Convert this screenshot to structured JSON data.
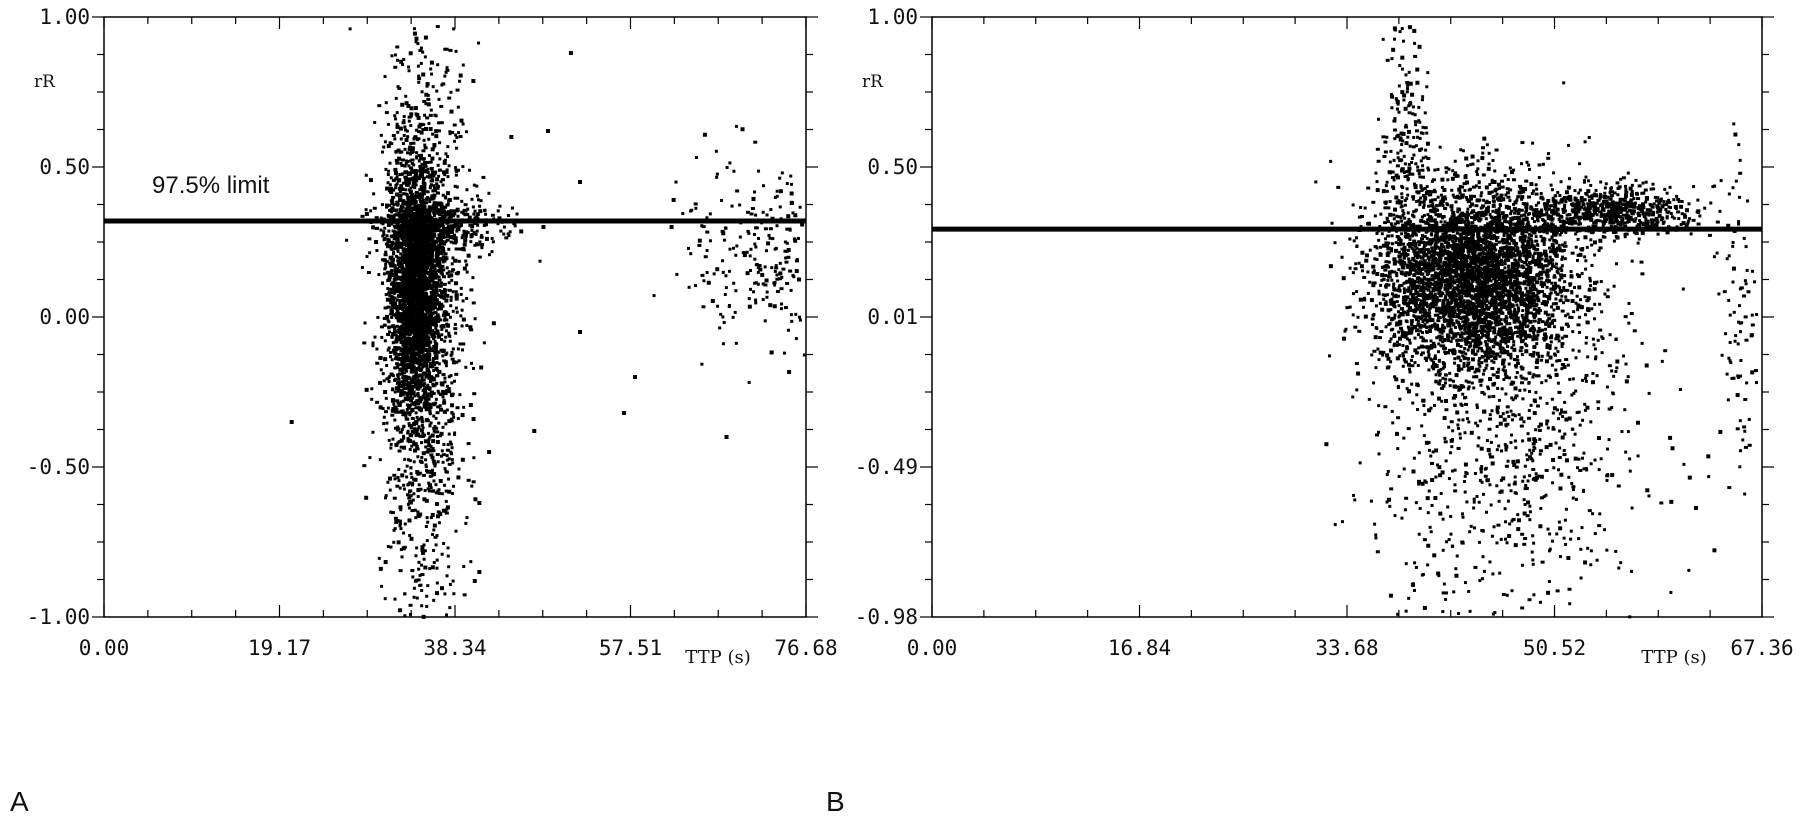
{
  "figure": {
    "panel_labels": [
      "A",
      "B"
    ]
  },
  "chart_data": [
    {
      "type": "scatter",
      "panel": "A",
      "title": "",
      "ylabel": "rR",
      "xlabel": "TTP (s)",
      "xlim": [
        0,
        76.68
      ],
      "ylim": [
        -1.0,
        1.0
      ],
      "x_ticks": [
        "0.00",
        "19.17",
        "38.34",
        "57.51",
        "76.68"
      ],
      "y_ticks": [
        "-1.00",
        "-0.50",
        "0.00",
        "0.50",
        "1.00"
      ],
      "threshold": {
        "label": "97.5% limit",
        "value": 0.32
      },
      "grid": false,
      "color": "#000000",
      "clusters": [
        {
          "cx": 34.0,
          "cy": 0.1,
          "sx": 1.4,
          "sy": 0.22,
          "n": 2600
        },
        {
          "cx": 35.0,
          "cy": -0.05,
          "sx": 2.4,
          "sy": 0.48,
          "n": 1300
        },
        {
          "cx": 36.5,
          "cy": 0.3,
          "sx": 3.5,
          "sy": 0.05,
          "n": 450
        },
        {
          "cx": 72.0,
          "cy": 0.22,
          "sx": 4.5,
          "sy": 0.16,
          "n": 260
        }
      ],
      "points": [
        [
          48.5,
          0.62
        ],
        [
          51.0,
          0.88
        ],
        [
          48.0,
          0.3
        ],
        [
          44.5,
          0.6
        ],
        [
          52.0,
          0.45
        ],
        [
          20.5,
          -0.35
        ],
        [
          56.8,
          -0.32
        ],
        [
          52.0,
          -0.05
        ],
        [
          58.0,
          -0.2
        ],
        [
          62.0,
          0.3
        ],
        [
          68.0,
          -0.4
        ],
        [
          47.0,
          -0.38
        ],
        [
          41.0,
          -0.62
        ],
        [
          41.0,
          -0.85
        ],
        [
          40.5,
          -0.88
        ]
      ]
    },
    {
      "type": "scatter",
      "panel": "B",
      "title": "",
      "ylabel": "rR",
      "xlabel": "TTP (s)",
      "xlim": [
        0,
        67.36
      ],
      "ylim": [
        -0.98,
        1.0
      ],
      "x_ticks": [
        "0.00",
        "16.84",
        "33.68",
        "50.52",
        "67.36"
      ],
      "y_ticks": [
        "-0.98",
        "-0.49",
        "0.01",
        "0.50",
        "1.00"
      ],
      "threshold": {
        "label": "",
        "value": 0.3
      },
      "grid": false,
      "color": "#000000",
      "clusters": [
        {
          "cx": 44.0,
          "cy": 0.14,
          "sx": 3.8,
          "sy": 0.15,
          "n": 3800
        },
        {
          "cx": 46.5,
          "cy": -0.35,
          "sx": 5.2,
          "sy": 0.35,
          "n": 900
        },
        {
          "cx": 55.0,
          "cy": 0.36,
          "sx": 3.4,
          "sy": 0.04,
          "n": 700
        },
        {
          "cx": 38.5,
          "cy": 0.4,
          "sx": 0.9,
          "sy": 0.3,
          "n": 320
        },
        {
          "cx": 65.5,
          "cy": 0.0,
          "sx": 0.8,
          "sy": 0.3,
          "n": 90
        }
      ],
      "points": [
        [
          61.5,
          -0.52
        ],
        [
          62.0,
          -0.62
        ],
        [
          63.0,
          -0.45
        ],
        [
          63.5,
          -0.76
        ],
        [
          60.0,
          -0.6
        ],
        [
          58.0,
          -0.15
        ],
        [
          61.0,
          0.32
        ],
        [
          53.0,
          -0.8
        ],
        [
          50.0,
          -0.9
        ],
        [
          40.0,
          -0.95
        ]
      ]
    }
  ]
}
